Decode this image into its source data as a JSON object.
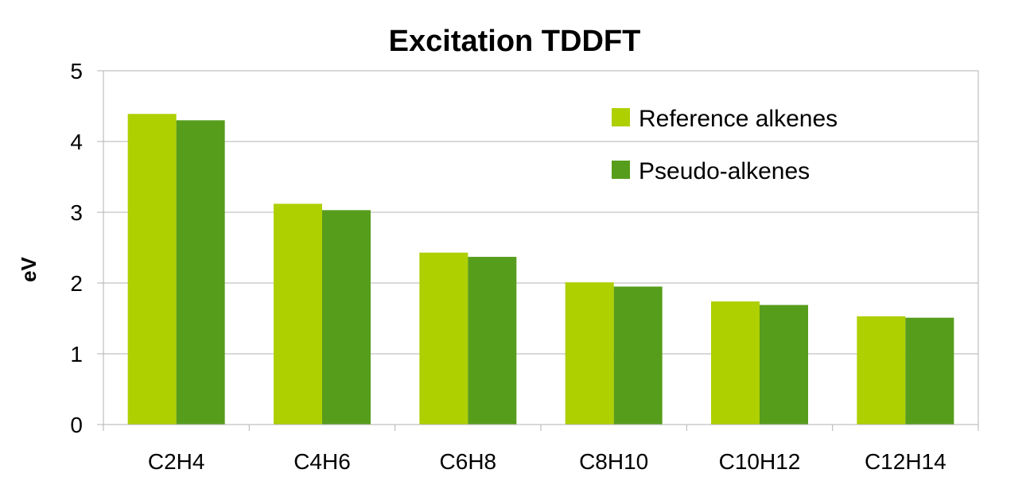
{
  "chart_data": {
    "type": "bar",
    "title": "Excitation TDDFT",
    "xlabel": "",
    "ylabel": "eV",
    "ylim": [
      0,
      5
    ],
    "yticks": [
      0,
      1,
      2,
      3,
      4,
      5
    ],
    "grid": true,
    "legend_position": "top-right",
    "categories": [
      "C2H4",
      "C4H6",
      "C6H8",
      "C8H10",
      "C10H12",
      "C12H14"
    ],
    "series": [
      {
        "name": "Reference alkenes",
        "color": "#AECF00",
        "values": [
          4.39,
          3.12,
          2.43,
          2.01,
          1.74,
          1.53
        ]
      },
      {
        "name": "Pseudo-alkenes",
        "color": "#579D1C",
        "values": [
          4.3,
          3.03,
          2.37,
          1.95,
          1.69,
          1.51
        ]
      }
    ]
  }
}
